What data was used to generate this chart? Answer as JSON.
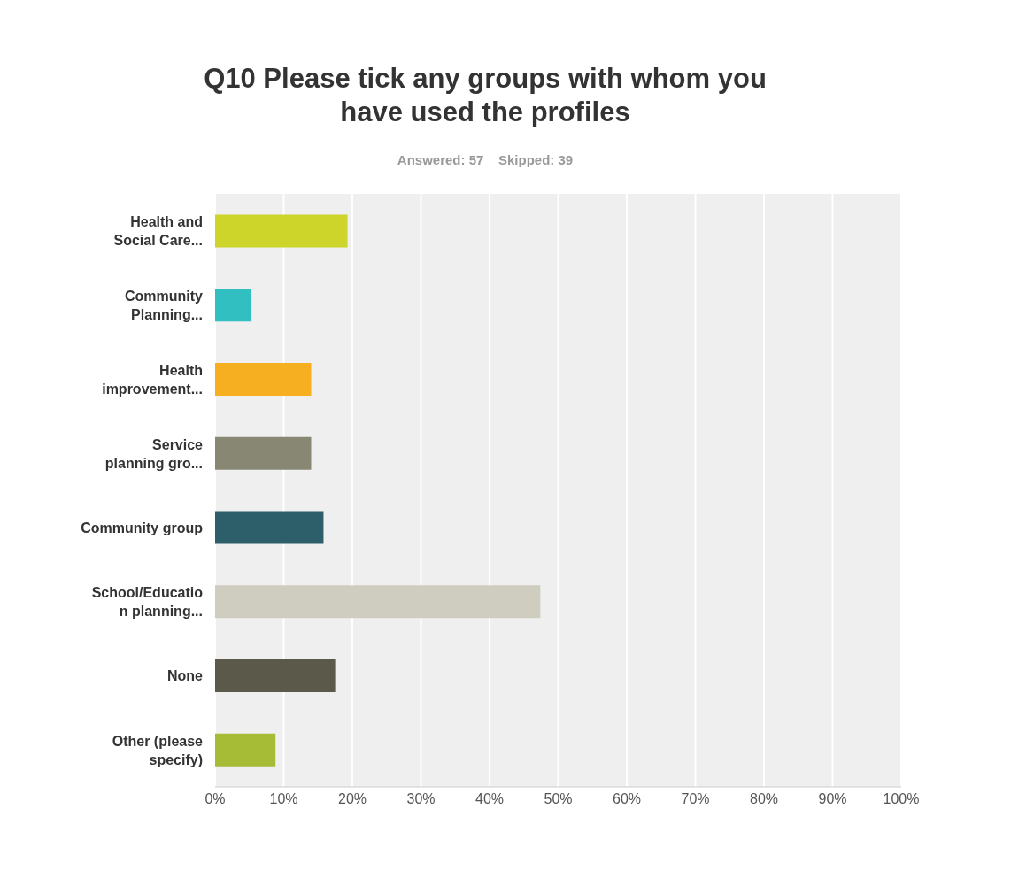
{
  "chart_data": {
    "type": "bar",
    "orientation": "horizontal",
    "title": "Q10 Please tick any groups with whom you have used the profiles",
    "subtitle": "Answered: 57    Skipped: 39",
    "categories": [
      "Health and Social Care...",
      "Community Planning...",
      "Health improvement...",
      "Service planning gro...",
      "Community group",
      "School/Education planning...",
      "None",
      "Other (please specify)"
    ],
    "values": [
      19.3,
      5.3,
      14,
      14,
      15.8,
      47.4,
      17.5,
      8.8
    ],
    "colors": [
      "#cdd42a",
      "#31bfc1",
      "#f5af21",
      "#878774",
      "#2d5f6b",
      "#cfcdbf",
      "#5b5a4a",
      "#a6bb36"
    ],
    "xlim": [
      0,
      100
    ],
    "xticks": [
      {
        "value": 0,
        "label": "0%"
      },
      {
        "value": 10,
        "label": "10%"
      },
      {
        "value": 20,
        "label": "20%"
      },
      {
        "value": 30,
        "label": "30%"
      },
      {
        "value": 40,
        "label": "40%"
      },
      {
        "value": 50,
        "label": "50%"
      },
      {
        "value": 60,
        "label": "60%"
      },
      {
        "value": 70,
        "label": "70%"
      },
      {
        "value": 80,
        "label": "80%"
      },
      {
        "value": 90,
        "label": "90%"
      },
      {
        "value": 100,
        "label": "100%"
      }
    ],
    "grid": "x"
  }
}
